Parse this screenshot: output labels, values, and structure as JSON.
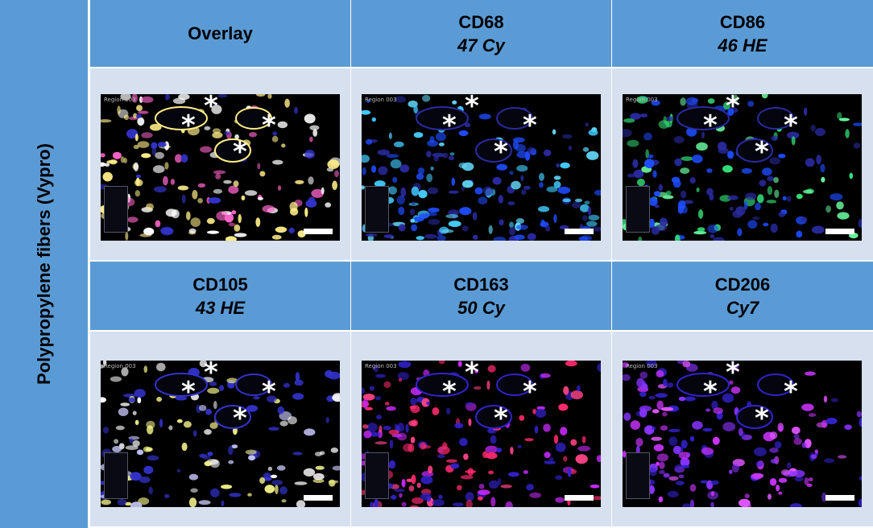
{
  "side_label": "Polypropylene fibers (Vypro)",
  "panels": [
    {
      "title": "Overlay",
      "subtitle": "",
      "colors": [
        "#ffffff",
        "#ff66cc",
        "#ffee88",
        "#3333cc"
      ]
    },
    {
      "title": "CD68",
      "subtitle": "47 Cy",
      "colors": [
        "#44ccff",
        "#1e4cff",
        "#2a2aa0",
        "#66ddff"
      ]
    },
    {
      "title": "CD86",
      "subtitle": "46 HE",
      "colors": [
        "#33dd77",
        "#1e4cff",
        "#2a2aa0",
        "#66ee99"
      ]
    },
    {
      "title": "CD105",
      "subtitle": "43 HE",
      "colors": [
        "#f0ee88",
        "#ffffff",
        "#3333cc",
        "#ccccff"
      ]
    },
    {
      "title": "CD163",
      "subtitle": "50 Cy",
      "colors": [
        "#ff2a6e",
        "#cc2aff",
        "#3322cc",
        "#ff4488"
      ]
    },
    {
      "title": "CD206",
      "subtitle": "Cy7",
      "colors": [
        "#cc33ff",
        "#8833ff",
        "#3322cc",
        "#e055ff"
      ]
    }
  ],
  "region_tag": "Region 003",
  "asterisk": "*"
}
